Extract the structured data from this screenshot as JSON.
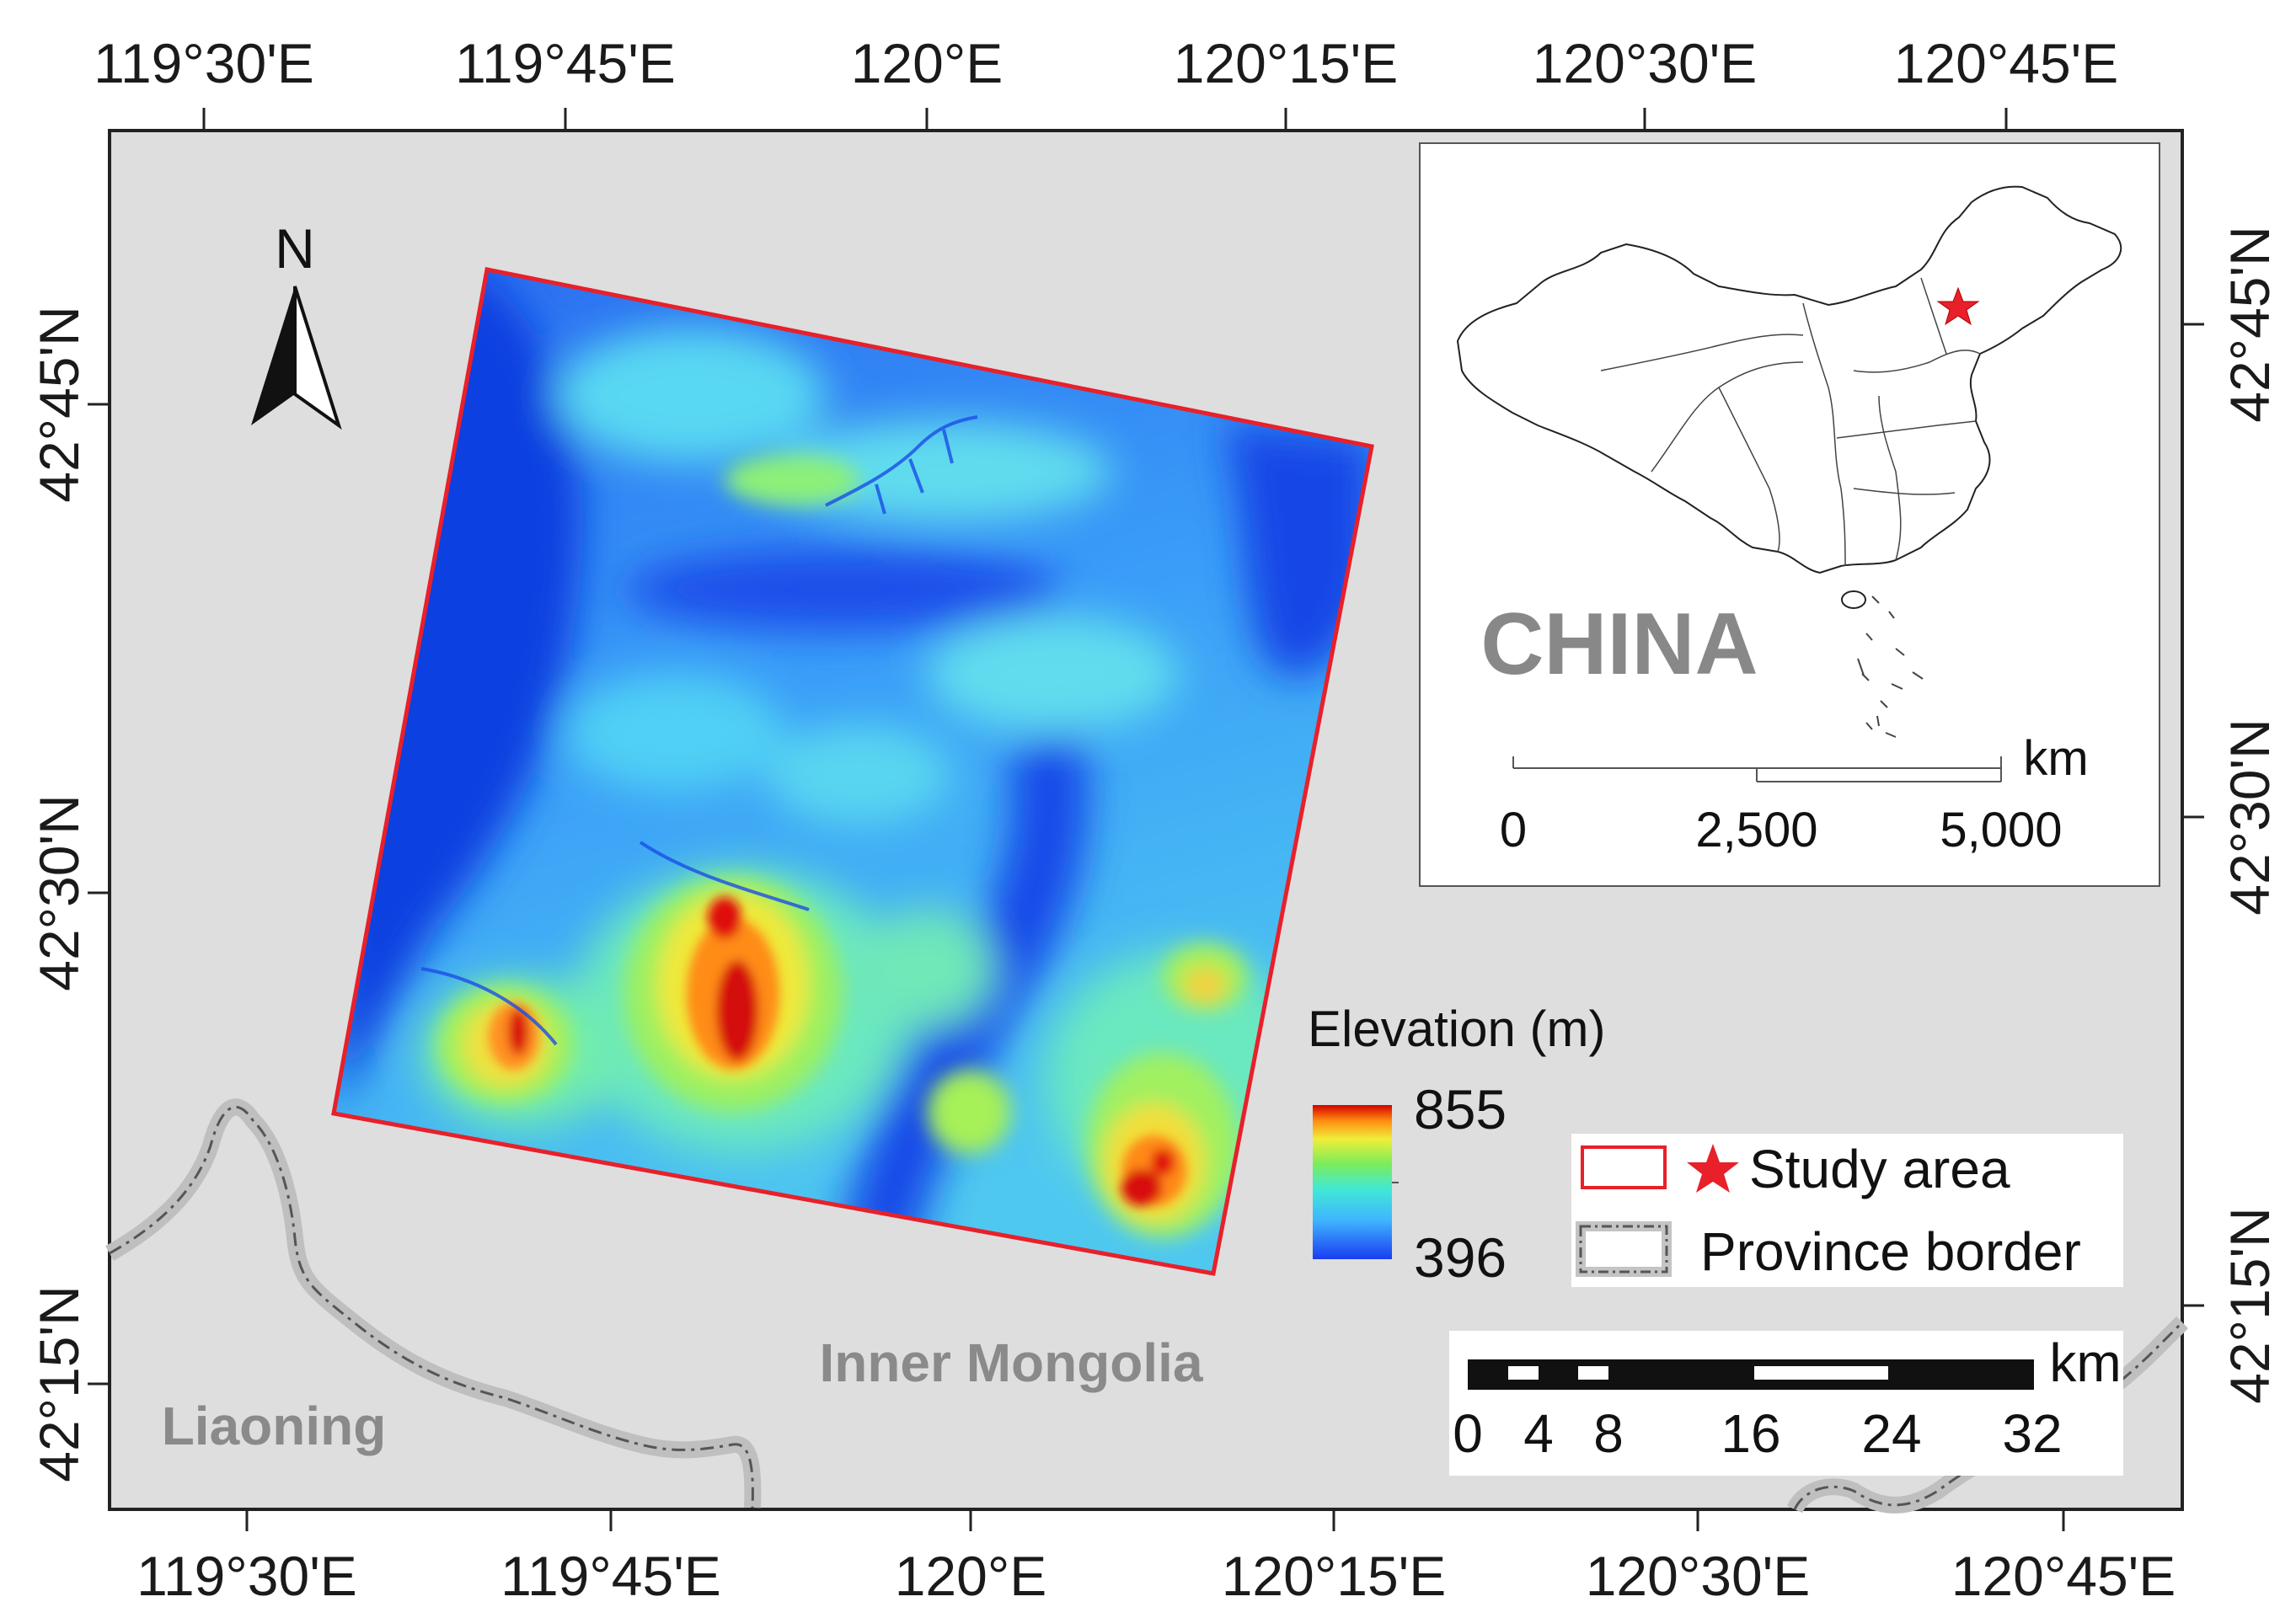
{
  "graticule": {
    "top_lon_labels": [
      "119°30'E",
      "119°45'E",
      "120°E",
      "120°15'E",
      "120°30'E",
      "120°45'E"
    ],
    "bottom_lon_labels": [
      "119°30'E",
      "119°45'E",
      "120°E",
      "120°15'E",
      "120°30'E",
      "120°45'E"
    ],
    "left_lat_labels": [
      "42°45'N",
      "42°30'N",
      "42°15'N"
    ],
    "right_lat_labels": [
      "42°45'N",
      "42°30'N",
      "42°15'N"
    ]
  },
  "north_arrow": {
    "label": "N"
  },
  "regions": {
    "inner_mongolia": "Inner Mongolia",
    "liaoning": "Liaoning"
  },
  "elevation_legend": {
    "title": "Elevation (m)",
    "max": "855",
    "min": "396"
  },
  "legend": {
    "study_area": "Study area",
    "province_border": "Province border"
  },
  "scale_bar": {
    "unit": "km",
    "ticks": [
      "0",
      "4",
      "8",
      "16",
      "24",
      "32"
    ]
  },
  "inset": {
    "title": "CHINA",
    "unit": "km",
    "ticks": [
      "0",
      "2,500",
      "5,000"
    ]
  },
  "colors": {
    "map_background": "#dedede",
    "study_area_outline": "#e8202a",
    "star": "#e8202a",
    "inset_title": "#888888",
    "region_label": "#8a8a8a",
    "dem_low": "#0a3ce6",
    "dem_high": "#c80000"
  }
}
